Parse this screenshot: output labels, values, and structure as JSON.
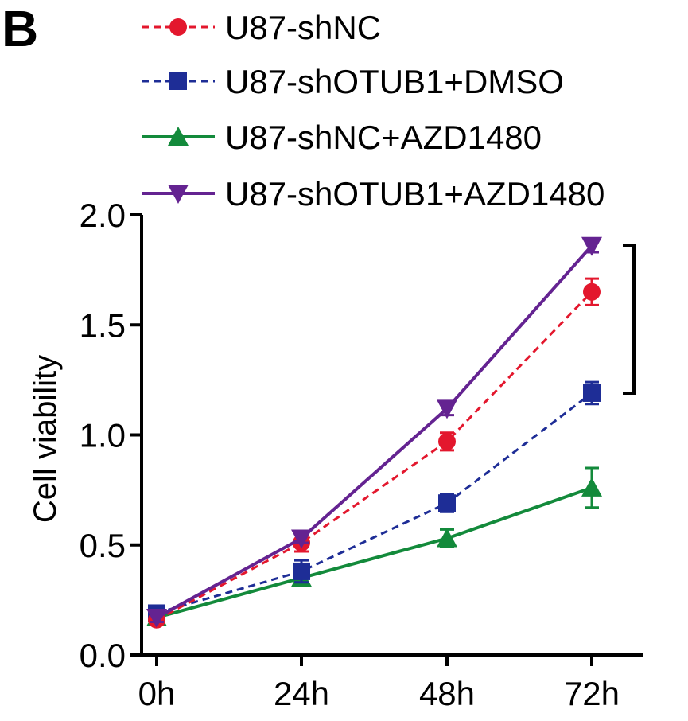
{
  "panel_label": "B",
  "chart_data": {
    "type": "line",
    "title": "",
    "xlabel": "",
    "ylabel": "Cell viability",
    "categories": [
      "0h",
      "24h",
      "48h",
      "72h"
    ],
    "ylim": [
      0,
      2.0
    ],
    "yticks": [
      "0.0",
      "0.5",
      "1.0",
      "1.5",
      "2.0"
    ],
    "legend_position": "top",
    "series": [
      {
        "name": "U87-shNC",
        "values": [
          0.16,
          0.51,
          0.97,
          1.65
        ],
        "errors": [
          0.02,
          0.04,
          0.04,
          0.06
        ],
        "color": "#e3172d",
        "marker": "circle",
        "dash": true
      },
      {
        "name": "U87-shOTUB1+DMSO",
        "values": [
          0.19,
          0.38,
          0.69,
          1.19
        ],
        "errors": [
          0.02,
          0.05,
          0.04,
          0.05
        ],
        "color": "#1e2d96",
        "marker": "square",
        "dash": true
      },
      {
        "name": "U87-shNC+AZD1480",
        "values": [
          0.17,
          0.35,
          0.53,
          0.76
        ],
        "errors": [
          0.02,
          0.03,
          0.04,
          0.09
        ],
        "color": "#138a3b",
        "marker": "triangle-up",
        "dash": false
      },
      {
        "name": "U87-shOTUB1+AZD1480",
        "values": [
          0.17,
          0.53,
          1.12,
          1.86
        ],
        "errors": [
          0.02,
          0.02,
          0.03,
          0.03
        ],
        "color": "#642391",
        "marker": "triangle-down",
        "dash": false
      }
    ],
    "annotations": [
      {
        "text": "***",
        "from": 1.86,
        "to": 1.19
      }
    ]
  }
}
